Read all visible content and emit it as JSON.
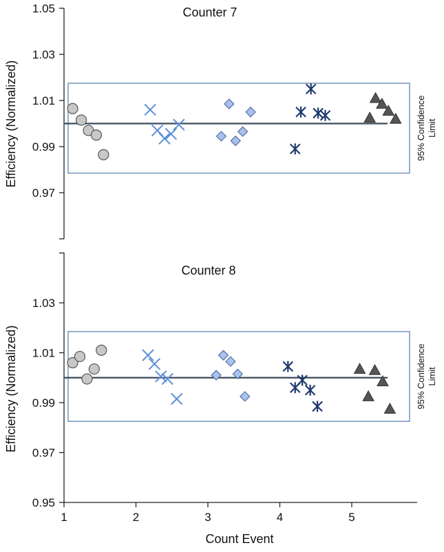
{
  "chart_data": {
    "type": "scatter",
    "xlabel": "Count Event",
    "x_ticks": [
      1,
      2,
      3,
      4,
      5
    ],
    "xlim": [
      0.97,
      5.9
    ],
    "marker_colors": {
      "circle": "#c8c8c8",
      "x": "#5b8fd9",
      "diamond": "#a9c1ec",
      "asterisk": "#1f3a6b",
      "triangle": "#555555",
      "reference_line": "#3b4a5c",
      "ci_box": "#7b9bbf"
    },
    "panels": [
      {
        "title": "Counter 7",
        "ylabel": "Efficiency (Normalized)",
        "ylim": [
          0.95,
          1.05
        ],
        "y_ticks": [
          "1.05",
          "1.03",
          "1.01",
          "0.99",
          "0.97"
        ],
        "reference_y": 1.0,
        "ci_band": {
          "label_line1": "95% Confidence",
          "label_line2": "Limit",
          "lower": 0.9785,
          "upper": 1.0175
        },
        "series": [
          {
            "marker": "circle",
            "points": [
              [
                1.1,
                1.0065
              ],
              [
                1.22,
                1.0015
              ],
              [
                1.32,
                0.997
              ],
              [
                1.43,
                0.995
              ],
              [
                1.53,
                0.9865
              ]
            ]
          },
          {
            "marker": "x",
            "points": [
              [
                2.18,
                1.006
              ],
              [
                2.28,
                0.997
              ],
              [
                2.38,
                0.9935
              ],
              [
                2.47,
                0.9955
              ],
              [
                2.58,
                0.9995
              ]
            ]
          },
          {
            "marker": "diamond",
            "points": [
              [
                3.17,
                0.9945
              ],
              [
                3.28,
                1.0085
              ],
              [
                3.37,
                0.9925
              ],
              [
                3.47,
                0.9965
              ],
              [
                3.58,
                1.005
              ]
            ]
          },
          {
            "marker": "asterisk",
            "points": [
              [
                4.2,
                0.989
              ],
              [
                4.28,
                1.005
              ],
              [
                4.42,
                1.015
              ],
              [
                4.52,
                1.0045
              ],
              [
                4.62,
                1.0035
              ]
            ]
          },
          {
            "marker": "triangle",
            "points": [
              [
                5.24,
                1.0025
              ],
              [
                5.32,
                1.011
              ],
              [
                5.41,
                1.0085
              ],
              [
                5.5,
                1.0055
              ],
              [
                5.6,
                1.002
              ]
            ]
          }
        ]
      },
      {
        "title": "Counter 8",
        "ylabel": "Efficiency (Normalized)",
        "ylim": [
          0.95,
          1.05
        ],
        "y_ticks": [
          "1.03",
          "1.01",
          "0.99",
          "0.97",
          "0.95"
        ],
        "reference_y": 1.0,
        "ci_band": {
          "label_line1": "95% Confidence",
          "label_line2": "Limit",
          "lower": 0.9825,
          "upper": 1.0185
        },
        "series": [
          {
            "marker": "circle",
            "points": [
              [
                1.1,
                1.006
              ],
              [
                1.2,
                1.0085
              ],
              [
                1.3,
                0.9995
              ],
              [
                1.4,
                1.0035
              ],
              [
                1.5,
                1.011
              ]
            ]
          },
          {
            "marker": "x",
            "points": [
              [
                2.15,
                1.009
              ],
              [
                2.24,
                1.0055
              ],
              [
                2.33,
                1.0005
              ],
              [
                2.42,
                0.9995
              ],
              [
                2.55,
                0.9915
              ]
            ]
          },
          {
            "marker": "diamond",
            "points": [
              [
                3.1,
                1.001
              ],
              [
                3.2,
                1.009
              ],
              [
                3.3,
                1.0065
              ],
              [
                3.4,
                1.0015
              ],
              [
                3.5,
                0.9925
              ]
            ]
          },
          {
            "marker": "asterisk",
            "points": [
              [
                4.1,
                1.0045
              ],
              [
                4.2,
                0.996
              ],
              [
                4.3,
                0.999
              ],
              [
                4.41,
                0.995
              ],
              [
                4.51,
                0.9885
              ]
            ]
          },
          {
            "marker": "triangle",
            "points": [
              [
                5.1,
                1.0035
              ],
              [
                5.22,
                0.9925
              ],
              [
                5.31,
                1.003
              ],
              [
                5.42,
                0.9985
              ],
              [
                5.52,
                0.9875
              ]
            ]
          }
        ]
      }
    ]
  }
}
